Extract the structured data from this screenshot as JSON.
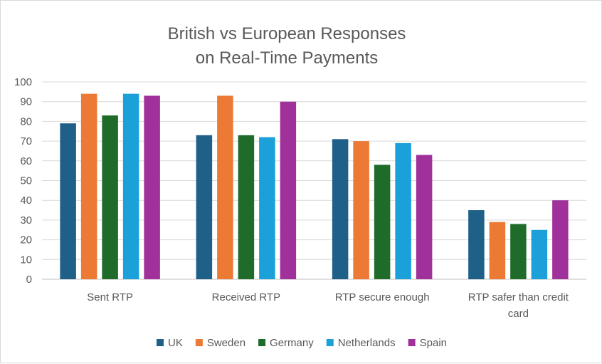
{
  "chart_data": {
    "type": "bar",
    "title": [
      "British vs European Responses",
      "on Real-Time Payments"
    ],
    "xlabel": "",
    "ylabel": "",
    "ylim": [
      0,
      100
    ],
    "yticks": [
      0,
      10,
      20,
      30,
      40,
      50,
      60,
      70,
      80,
      90,
      100
    ],
    "grid": true,
    "legend_position": "bottom",
    "categories": [
      [
        "Sent RTP"
      ],
      [
        "Received RTP"
      ],
      [
        "RTP secure enough"
      ],
      [
        "RTP safer than credit",
        "card"
      ]
    ],
    "series": [
      {
        "name": "UK",
        "color": "#1f6088",
        "values": [
          79,
          73,
          71,
          35
        ]
      },
      {
        "name": "Sweden",
        "color": "#ec7a35",
        "values": [
          94,
          93,
          70,
          29
        ]
      },
      {
        "name": "Germany",
        "color": "#1e6b2a",
        "values": [
          83,
          73,
          58,
          28
        ]
      },
      {
        "name": "Netherlands",
        "color": "#1ca0d9",
        "values": [
          94,
          72,
          69,
          25
        ]
      },
      {
        "name": "Spain",
        "color": "#a0309a",
        "values": [
          93,
          90,
          63,
          40
        ]
      }
    ]
  }
}
